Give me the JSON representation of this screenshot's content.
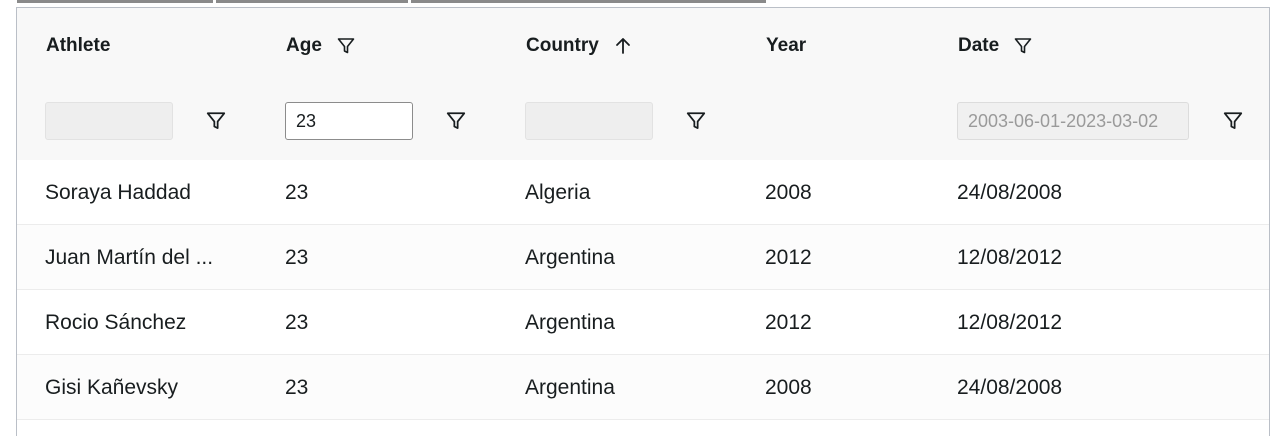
{
  "columns": [
    {
      "key": "athlete",
      "label": "Athlete",
      "header_icon": ""
    },
    {
      "key": "age",
      "label": "Age",
      "header_icon": "filter-icon"
    },
    {
      "key": "country",
      "label": "Country",
      "header_icon": "sort-ascending-icon"
    },
    {
      "key": "year",
      "label": "Year",
      "header_icon": ""
    },
    {
      "key": "date",
      "label": "Date",
      "header_icon": "filter-icon"
    }
  ],
  "filters": {
    "athlete": {
      "value": "",
      "placeholder": ""
    },
    "age": {
      "value": "23",
      "placeholder": ""
    },
    "country": {
      "value": "",
      "placeholder": ""
    },
    "date": {
      "value": "2003-06-01-2023-03-02",
      "placeholder": ""
    }
  },
  "rows": [
    {
      "athlete": "Soraya Haddad",
      "age": "23",
      "country": "Algeria",
      "year": "2008",
      "date": "24/08/2008"
    },
    {
      "athlete": "Juan Martín del ...",
      "age": "23",
      "country": "Argentina",
      "year": "2012",
      "date": "12/08/2012"
    },
    {
      "athlete": "Rocio Sánchez",
      "age": "23",
      "country": "Argentina",
      "year": "2012",
      "date": "12/08/2012"
    },
    {
      "athlete": "Gisi Kañevsky",
      "age": "23",
      "country": "Argentina",
      "year": "2008",
      "date": "24/08/2008"
    }
  ],
  "colors": {
    "header_bg": "#f8f8f8",
    "border": "#babfc7",
    "text": "#181d1f"
  }
}
